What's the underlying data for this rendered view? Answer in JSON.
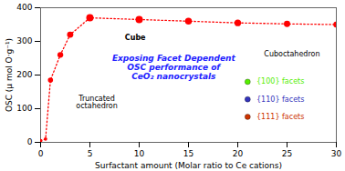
{
  "chart_data": {
    "type": "line",
    "x": [
      0,
      0.5,
      1,
      2,
      3,
      5,
      10,
      15,
      20,
      25,
      30
    ],
    "values": [
      5,
      10,
      185,
      260,
      320,
      370,
      365,
      360,
      355,
      352,
      350
    ],
    "sizes": [
      18,
      18,
      40,
      50,
      60,
      80,
      80,
      70,
      65,
      60,
      55
    ],
    "color": "#ff0000",
    "marker": "circle",
    "line_style": "dotted",
    "xlabel": "Surfactant amount (Molar ratio to Ce cations)",
    "ylabel": "OSC (μ mol O·g⁻¹)",
    "xlim": [
      0,
      30
    ],
    "ylim": [
      0,
      400
    ],
    "xticks": [
      0,
      5,
      10,
      15,
      20,
      25,
      30
    ],
    "yticks": [
      0,
      100,
      200,
      300,
      400
    ],
    "annotations": [
      {
        "text": "Exposing Facet Dependent\nOSC performance of\nCeO₂ nanocrystals",
        "color": "#2222ff"
      },
      {
        "text": "Cube"
      },
      {
        "text": "Truncated\noctahedron"
      },
      {
        "text": "Cuboctahedron"
      }
    ],
    "legend_entries": [
      {
        "name": "{100} facets",
        "color": "#55ee00"
      },
      {
        "name": "{110} facets",
        "color": "#3333bb"
      },
      {
        "name": "{111} facets",
        "color": "#cc3300"
      }
    ]
  }
}
